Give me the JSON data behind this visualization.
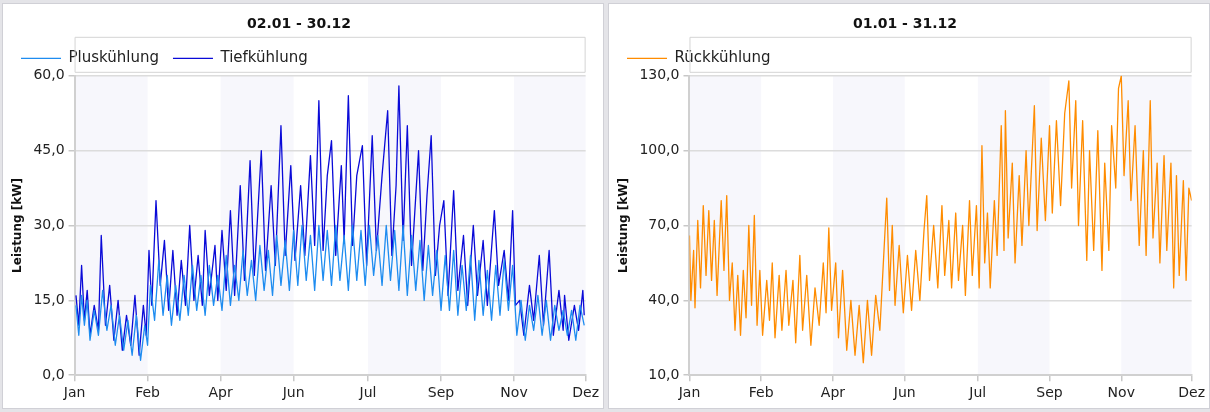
{
  "chart_data": [
    {
      "type": "line",
      "title": "02.01 - 30.12",
      "ylabel": "Leistung [kW]",
      "legend": "top",
      "grid": "y",
      "xlim": [
        "--01-01",
        "--12-31"
      ],
      "xticks": [
        {
          "value": "--01-01",
          "label": "Jan"
        },
        {
          "value": "--02-22",
          "label": "Feb"
        },
        {
          "value": "--04-15",
          "label": "Apr"
        },
        {
          "value": "--06-06",
          "label": "Jun"
        },
        {
          "value": "--07-29",
          "label": "Jul"
        },
        {
          "value": "--09-19",
          "label": "Sep"
        },
        {
          "value": "--11-10",
          "label": "Nov"
        },
        {
          "value": "--12-31",
          "label": "Dez"
        }
      ],
      "ylim": [
        0,
        60
      ],
      "yticks": [
        {
          "value": 0,
          "label": "0,0"
        },
        {
          "value": 15,
          "label": "15,0"
        },
        {
          "value": 30,
          "label": "30,0"
        },
        {
          "value": 45,
          "label": "45,0"
        },
        {
          "value": 60,
          "label": "60,0"
        }
      ],
      "bands": [
        {
          "axis": "x",
          "from": "--01-01",
          "to": "--02-22",
          "color": "#f7f7fc"
        },
        {
          "axis": "x",
          "from": "--04-15",
          "to": "--06-06",
          "color": "#f7f7fc"
        },
        {
          "axis": "x",
          "from": "--07-29",
          "to": "--09-19",
          "color": "#f7f7fc"
        },
        {
          "axis": "x",
          "from": "--11-10",
          "to": "--12-31",
          "color": "#f7f7fc"
        }
      ],
      "series": [
        {
          "name": "Pluskühlung",
          "color": "#1e8cf0",
          "x": [
            "--01-02",
            "--01-04",
            "--01-06",
            "--01-08",
            "--01-10",
            "--01-12",
            "--01-15",
            "--01-18",
            "--01-21",
            "--01-24",
            "--01-27",
            "--01-30",
            "--02-02",
            "--02-05",
            "--02-08",
            "--02-11",
            "--02-14",
            "--02-17",
            "--02-20",
            "--02-22",
            "--02-24",
            "--02-27",
            "--03-02",
            "--03-05",
            "--03-08",
            "--03-11",
            "--03-14",
            "--03-17",
            "--03-20",
            "--03-23",
            "--03-26",
            "--03-29",
            "--04-01",
            "--04-04",
            "--04-07",
            "--04-10",
            "--04-13",
            "--04-16",
            "--04-19",
            "--04-22",
            "--04-25",
            "--04-28",
            "--05-01",
            "--05-04",
            "--05-07",
            "--05-10",
            "--05-13",
            "--05-16",
            "--05-19",
            "--05-22",
            "--05-25",
            "--05-28",
            "--05-31",
            "--06-03",
            "--06-06",
            "--06-09",
            "--06-12",
            "--06-15",
            "--06-18",
            "--06-21",
            "--06-24",
            "--06-27",
            "--06-30",
            "--07-03",
            "--07-06",
            "--07-09",
            "--07-12",
            "--07-15",
            "--07-18",
            "--07-21",
            "--07-24",
            "--07-27",
            "--07-30",
            "--08-02",
            "--08-05",
            "--08-08",
            "--08-11",
            "--08-14",
            "--08-17",
            "--08-20",
            "--08-23",
            "--08-26",
            "--08-29",
            "--09-01",
            "--09-04",
            "--09-07",
            "--09-10",
            "--09-13",
            "--09-16",
            "--09-19",
            "--09-22",
            "--09-25",
            "--09-28",
            "--10-01",
            "--10-04",
            "--10-07",
            "--10-10",
            "--10-13",
            "--10-16",
            "--10-19",
            "--10-22",
            "--10-25",
            "--10-28",
            "--10-31",
            "--11-03",
            "--11-06",
            "--11-09",
            "--11-12",
            "--11-15",
            "--11-18",
            "--11-21",
            "--11-24",
            "--11-27",
            "--11-30",
            "--12-03",
            "--12-06",
            "--12-09",
            "--12-12",
            "--12-15",
            "--12-18",
            "--12-21",
            "--12-24",
            "--12-27",
            "--12-30"
          ],
          "values": [
            14,
            8,
            16,
            10,
            15,
            7,
            13,
            8,
            17,
            9,
            14,
            6,
            12,
            5,
            11,
            4,
            12,
            3,
            10,
            6,
            18,
            11,
            23,
            12,
            20,
            10,
            18,
            11,
            20,
            12,
            22,
            13,
            20,
            12,
            22,
            14,
            20,
            13,
            24,
            14,
            22,
            15,
            25,
            16,
            23,
            15,
            26,
            17,
            25,
            16,
            28,
            18,
            27,
            17,
            29,
            18,
            30,
            19,
            28,
            17,
            30,
            19,
            29,
            18,
            30,
            19,
            28,
            17,
            30,
            19,
            29,
            18,
            30,
            20,
            28,
            18,
            30,
            19,
            29,
            17,
            30,
            16,
            28,
            17,
            27,
            15,
            26,
            16,
            25,
            13,
            24,
            13,
            25,
            12,
            22,
            13,
            24,
            11,
            23,
            12,
            21,
            11,
            22,
            12,
            23,
            13,
            22,
            8,
            15,
            7,
            14,
            9,
            16,
            8,
            15,
            7,
            14,
            9,
            13,
            8,
            13,
            7,
            14,
            10
          ]
        },
        {
          "name": "Tiefkühlung",
          "color": "#0a0ad8",
          "x": [
            "--01-02",
            "--01-04",
            "--01-06",
            "--01-08",
            "--01-10",
            "--01-12",
            "--01-15",
            "--01-18",
            "--01-20",
            "--01-23",
            "--01-26",
            "--01-29",
            "--02-01",
            "--02-04",
            "--02-07",
            "--02-10",
            "--02-13",
            "--02-16",
            "--02-19",
            "--02-21",
            "--02-23",
            "--02-25",
            "--02-28",
            "--03-03",
            "--03-06",
            "--03-09",
            "--03-12",
            "--03-15",
            "--03-18",
            "--03-21",
            "--03-24",
            "--03-27",
            "--03-30",
            "--04-02",
            "--04-04",
            "--04-07",
            "--04-11",
            "--04-13",
            "--04-16",
            "--04-19",
            "--04-22",
            "--04-25",
            "--04-29",
            "--05-02",
            "--05-06",
            "--05-09",
            "--05-14",
            "--05-17",
            "--05-21",
            "--05-24",
            "--05-28",
            "--05-31",
            "--06-04",
            "--06-07",
            "--06-11",
            "--06-14",
            "--06-18",
            "--06-21",
            "--06-24",
            "--06-27",
            "--06-30",
            "--07-03",
            "--07-06",
            "--07-10",
            "--07-12",
            "--07-15",
            "--07-18",
            "--07-21",
            "--07-25",
            "--07-28",
            "--08-01",
            "--08-04",
            "--08-08",
            "--08-12",
            "--08-15",
            "--08-18",
            "--08-20",
            "--08-23",
            "--08-26",
            "--08-29",
            "--09-03",
            "--09-06",
            "--09-09",
            "--09-12",
            "--09-15",
            "--09-18",
            "--09-21",
            "--09-24",
            "--09-28",
            "--10-01",
            "--10-05",
            "--10-08",
            "--10-12",
            "--10-15",
            "--10-19",
            "--10-22",
            "--10-27",
            "--10-30",
            "--11-03",
            "--11-06",
            "--11-09",
            "--11-11",
            "--11-14",
            "--11-17",
            "--11-21",
            "--11-24",
            "--11-28",
            "--12-01",
            "--12-05",
            "--12-08",
            "--12-12",
            "--12-15",
            "--12-16",
            "--12-19",
            "--12-23",
            "--12-26",
            "--12-29",
            "--12-30"
          ],
          "values": [
            16,
            10,
            22,
            11,
            17,
            8,
            14,
            9,
            28,
            10,
            18,
            7,
            15,
            5,
            12,
            6,
            16,
            4,
            14,
            8,
            25,
            14,
            35,
            18,
            27,
            13,
            25,
            12,
            23,
            14,
            30,
            15,
            24,
            14,
            29,
            16,
            26,
            15,
            29,
            17,
            33,
            16,
            38,
            19,
            43,
            20,
            45,
            21,
            38,
            22,
            50,
            24,
            42,
            23,
            38,
            24,
            44,
            26,
            55,
            25,
            40,
            47,
            24,
            42,
            27,
            56,
            26,
            40,
            46,
            22,
            48,
            25,
            40,
            53,
            24,
            38,
            58,
            27,
            50,
            22,
            45,
            21,
            36,
            48,
            20,
            30,
            35,
            16,
            37,
            17,
            28,
            14,
            30,
            16,
            27,
            14,
            33,
            18,
            25,
            15,
            33,
            14,
            15,
            8,
            18,
            11,
            24,
            10,
            25,
            8,
            17,
            9,
            16,
            7,
            14,
            9,
            17,
            12
          ]
        }
      ]
    },
    {
      "type": "line",
      "title": "01.01 - 31.12",
      "ylabel": "Leistung [kW]",
      "legend": "top",
      "grid": "y",
      "xlim": [
        "--01-01",
        "--12-31"
      ],
      "xticks": [
        {
          "value": "--01-01",
          "label": "Jan"
        },
        {
          "value": "--02-22",
          "label": "Feb"
        },
        {
          "value": "--04-15",
          "label": "Apr"
        },
        {
          "value": "--06-06",
          "label": "Jun"
        },
        {
          "value": "--07-29",
          "label": "Jul"
        },
        {
          "value": "--09-19",
          "label": "Sep"
        },
        {
          "value": "--11-10",
          "label": "Nov"
        },
        {
          "value": "--12-31",
          "label": "Dez"
        }
      ],
      "ylim": [
        10,
        130
      ],
      "yticks": [
        {
          "value": 10,
          "label": "10,0"
        },
        {
          "value": 40,
          "label": "40,0"
        },
        {
          "value": 70,
          "label": "70,0"
        },
        {
          "value": 100,
          "label": "100,0"
        },
        {
          "value": 130,
          "label": "130,0"
        }
      ],
      "bands": [
        {
          "axis": "x",
          "from": "--01-01",
          "to": "--02-22",
          "color": "#f7f7fc"
        },
        {
          "axis": "x",
          "from": "--04-15",
          "to": "--06-06",
          "color": "#f7f7fc"
        },
        {
          "axis": "x",
          "from": "--07-29",
          "to": "--09-19",
          "color": "#f7f7fc"
        },
        {
          "axis": "x",
          "from": "--11-10",
          "to": "--12-31",
          "color": "#f7f7fc"
        }
      ],
      "series": [
        {
          "name": "Rückkühlung",
          "color": "#ff8c00",
          "x": [
            "--01-01",
            "--01-02",
            "--01-04",
            "--01-05",
            "--01-07",
            "--01-09",
            "--01-11",
            "--01-13",
            "--01-15",
            "--01-17",
            "--01-19",
            "--01-21",
            "--01-24",
            "--01-26",
            "--01-28",
            "--01-30",
            "--02-01",
            "--02-03",
            "--02-05",
            "--02-07",
            "--02-09",
            "--02-11",
            "--02-13",
            "--02-15",
            "--02-17",
            "--02-19",
            "--02-21",
            "--02-23",
            "--02-26",
            "--02-28",
            "--03-02",
            "--03-04",
            "--03-07",
            "--03-09",
            "--03-12",
            "--03-14",
            "--03-17",
            "--03-19",
            "--03-22",
            "--03-24",
            "--03-27",
            "--03-30",
            "--04-02",
            "--04-05",
            "--04-08",
            "--04-10",
            "--04-12",
            "--04-14",
            "--04-17",
            "--04-19",
            "--04-22",
            "--04-25",
            "--04-28",
            "--05-01",
            "--05-04",
            "--05-07",
            "--05-10",
            "--05-13",
            "--05-16",
            "--05-19",
            "--05-22",
            "--05-24",
            "--05-26",
            "--05-28",
            "--05-30",
            "--06-02",
            "--06-05",
            "--06-08",
            "--06-11",
            "--06-14",
            "--06-17",
            "--06-20",
            "--06-22",
            "--06-24",
            "--06-27",
            "--06-30",
            "--07-03",
            "--07-05",
            "--07-08",
            "--07-10",
            "--07-13",
            "--07-15",
            "--07-18",
            "--07-20",
            "--07-23",
            "--07-25",
            "--07-28",
            "--07-30",
            "--08-01",
            "--08-03",
            "--08-05",
            "--08-07",
            "--08-10",
            "--08-12",
            "--08-15",
            "--08-17",
            "--08-18",
            "--08-20",
            "--08-23",
            "--08-25",
            "--08-28",
            "--08-30",
            "--09-02",
            "--09-04",
            "--09-08",
            "--09-10",
            "--09-13",
            "--09-16",
            "--09-19",
            "--09-21",
            "--09-24",
            "--09-27",
            "--09-30",
            "--10-03",
            "--10-05",
            "--10-08",
            "--10-10",
            "--10-13",
            "--10-16",
            "--10-18",
            "--10-21",
            "--10-24",
            "--10-27",
            "--10-29",
            "--11-01",
            "--11-03",
            "--11-06",
            "--11-08",
            "--11-10",
            "--11-12",
            "--11-15",
            "--11-17",
            "--11-20",
            "--11-23",
            "--11-26",
            "--11-28",
            "--12-01",
            "--12-03",
            "--12-06",
            "--12-08",
            "--12-11",
            "--12-13",
            "--12-16",
            "--12-18",
            "--12-20",
            "--12-22",
            "--12-25",
            "--12-27",
            "--12-29",
            "--12-31"
          ],
          "values": [
            66,
            40,
            60,
            37,
            72,
            45,
            78,
            50,
            76,
            48,
            72,
            42,
            80,
            52,
            82,
            40,
            55,
            28,
            50,
            26,
            52,
            33,
            70,
            38,
            74,
            30,
            52,
            26,
            48,
            32,
            55,
            25,
            50,
            28,
            52,
            30,
            48,
            23,
            58,
            28,
            50,
            22,
            45,
            30,
            55,
            35,
            69,
            36,
            55,
            25,
            52,
            20,
            40,
            18,
            38,
            15,
            40,
            18,
            42,
            28,
            60,
            81,
            44,
            70,
            38,
            62,
            35,
            58,
            36,
            60,
            40,
            68,
            82,
            48,
            70,
            45,
            78,
            50,
            72,
            45,
            75,
            48,
            70,
            42,
            80,
            50,
            78,
            45,
            102,
            55,
            75,
            45,
            80,
            58,
            110,
            60,
            116,
            65,
            95,
            55,
            90,
            62,
            100,
            70,
            118,
            68,
            105,
            72,
            110,
            75,
            112,
            78,
            115,
            128,
            85,
            120,
            70,
            112,
            56,
            100,
            60,
            108,
            52,
            95,
            60,
            110,
            85,
            125,
            130,
            90,
            120,
            80,
            110,
            62,
            100,
            58,
            120,
            65,
            95,
            55,
            98,
            60,
            95,
            45,
            90,
            50,
            88,
            48,
            85,
            80
          ]
        }
      ]
    }
  ]
}
